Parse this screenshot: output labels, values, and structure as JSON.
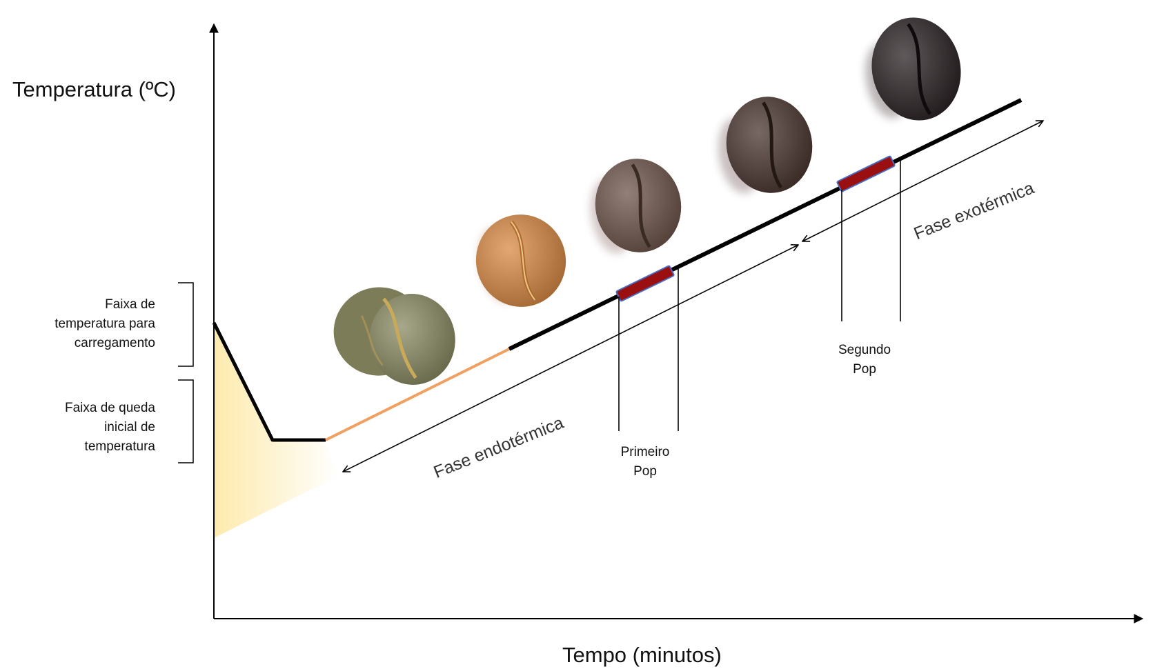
{
  "axes": {
    "y_title": "Temperatura (ºC)",
    "x_title": "Tempo (minutos)"
  },
  "ranges": {
    "loading_lines": [
      "Faixa de",
      "temperatura para",
      "carregamento"
    ],
    "initial_drop_lines": [
      "Faixa de queda",
      "inicial de",
      "temperatura"
    ]
  },
  "events": {
    "first_pop_lines": [
      "Primeiro",
      "Pop"
    ],
    "second_pop_lines": [
      "Segundo",
      "Pop"
    ]
  },
  "phases": {
    "endothermic": "Fase endotérmica",
    "exothermic": "Fase exotérmica"
  },
  "beans": [
    {
      "stage": "green",
      "color": "#7d7c58"
    },
    {
      "stage": "yellow-orange",
      "color": "#d98a44"
    },
    {
      "stage": "light-brown",
      "color": "#6e554b"
    },
    {
      "stage": "medium-brown",
      "color": "#4a3630"
    },
    {
      "stage": "dark",
      "color": "#2a2224"
    }
  ],
  "colors": {
    "early_curve": "#f0a060",
    "main_curve": "#000000",
    "pop_marker": "#9a1010",
    "pop_marker_border": "#4a6cc0",
    "warm_fill": "#fde9a8"
  }
}
